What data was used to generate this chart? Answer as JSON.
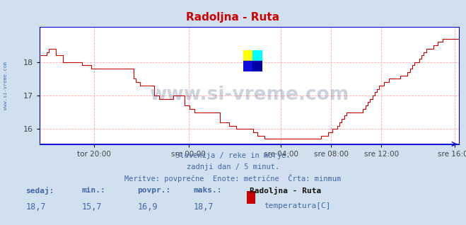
{
  "title": "Radoljna - Ruta",
  "title_color": "#cc0000",
  "bg_color": "#d0e0ee",
  "plot_bg_color": "#ffffff",
  "line_color": "#cc0000",
  "axis_color": "#0000cc",
  "grid_color": "#ffaaaa",
  "ylim": [
    15.55,
    19.05
  ],
  "yticks": [
    16,
    17,
    18
  ],
  "xtick_labels": [
    "tor 20:00",
    "sre 00:00",
    "sre 04:00",
    "sre 08:00",
    "sre 12:00",
    "sre 16:00"
  ],
  "subtitle_line1": "Slovenija / reke in morje.",
  "subtitle_line2": "zadnji dan / 5 minut.",
  "subtitle_line3": "Meritve: povprečne  Enote: metrične  Črta: minmum",
  "subtitle_color": "#4466aa",
  "legend_station": "Radoljna - Ruta",
  "legend_label": "temperatura[C]",
  "legend_color": "#cc0000",
  "stats_labels": [
    "sedaj:",
    "min.:",
    "povpr.:",
    "maks.:"
  ],
  "stats_values": [
    "18,7",
    "15,7",
    "16,9",
    "18,7"
  ],
  "stats_color": "#4466aa",
  "watermark": "www.si-vreme.com",
  "watermark_color": "#1a3a6a",
  "side_label": "www.si-vreme.com",
  "temp_data": [
    18.2,
    18.2,
    18.2,
    18.3,
    18.4,
    18.4,
    18.4,
    18.2,
    18.2,
    18.2,
    18.0,
    18.0,
    18.0,
    18.0,
    18.0,
    18.0,
    18.0,
    18.0,
    17.9,
    17.9,
    17.9,
    17.9,
    17.8,
    17.8,
    17.8,
    17.8,
    17.8,
    17.8,
    17.8,
    17.8,
    17.8,
    17.8,
    17.8,
    17.8,
    17.8,
    17.8,
    17.8,
    17.8,
    17.8,
    17.8,
    17.5,
    17.4,
    17.4,
    17.3,
    17.3,
    17.3,
    17.3,
    17.3,
    17.3,
    17.0,
    17.0,
    16.9,
    16.9,
    16.9,
    16.9,
    16.9,
    16.9,
    17.0,
    17.0,
    17.0,
    17.0,
    17.0,
    16.7,
    16.7,
    16.6,
    16.6,
    16.5,
    16.5,
    16.5,
    16.5,
    16.5,
    16.5,
    16.5,
    16.5,
    16.5,
    16.5,
    16.5,
    16.2,
    16.2,
    16.2,
    16.2,
    16.1,
    16.1,
    16.1,
    16.0,
    16.0,
    16.0,
    16.0,
    16.0,
    16.0,
    16.0,
    15.9,
    15.9,
    15.8,
    15.8,
    15.8,
    15.7,
    15.7,
    15.7,
    15.7,
    15.7,
    15.7,
    15.7,
    15.7,
    15.7,
    15.7,
    15.7,
    15.7,
    15.7,
    15.7,
    15.7,
    15.7,
    15.7,
    15.7,
    15.7,
    15.7,
    15.7,
    15.7,
    15.7,
    15.7,
    15.8,
    15.8,
    15.8,
    15.9,
    15.9,
    16.0,
    16.0,
    16.1,
    16.2,
    16.3,
    16.4,
    16.5,
    16.5,
    16.5,
    16.5,
    16.5,
    16.5,
    16.5,
    16.6,
    16.7,
    16.8,
    16.9,
    17.0,
    17.1,
    17.2,
    17.3,
    17.3,
    17.4,
    17.4,
    17.5,
    17.5,
    17.5,
    17.5,
    17.5,
    17.6,
    17.6,
    17.6,
    17.7,
    17.8,
    17.9,
    18.0,
    18.0,
    18.1,
    18.2,
    18.3,
    18.4,
    18.4,
    18.4,
    18.5,
    18.5,
    18.6,
    18.6,
    18.7,
    18.7,
    18.7,
    18.7,
    18.7,
    18.7,
    18.7,
    18.7
  ]
}
